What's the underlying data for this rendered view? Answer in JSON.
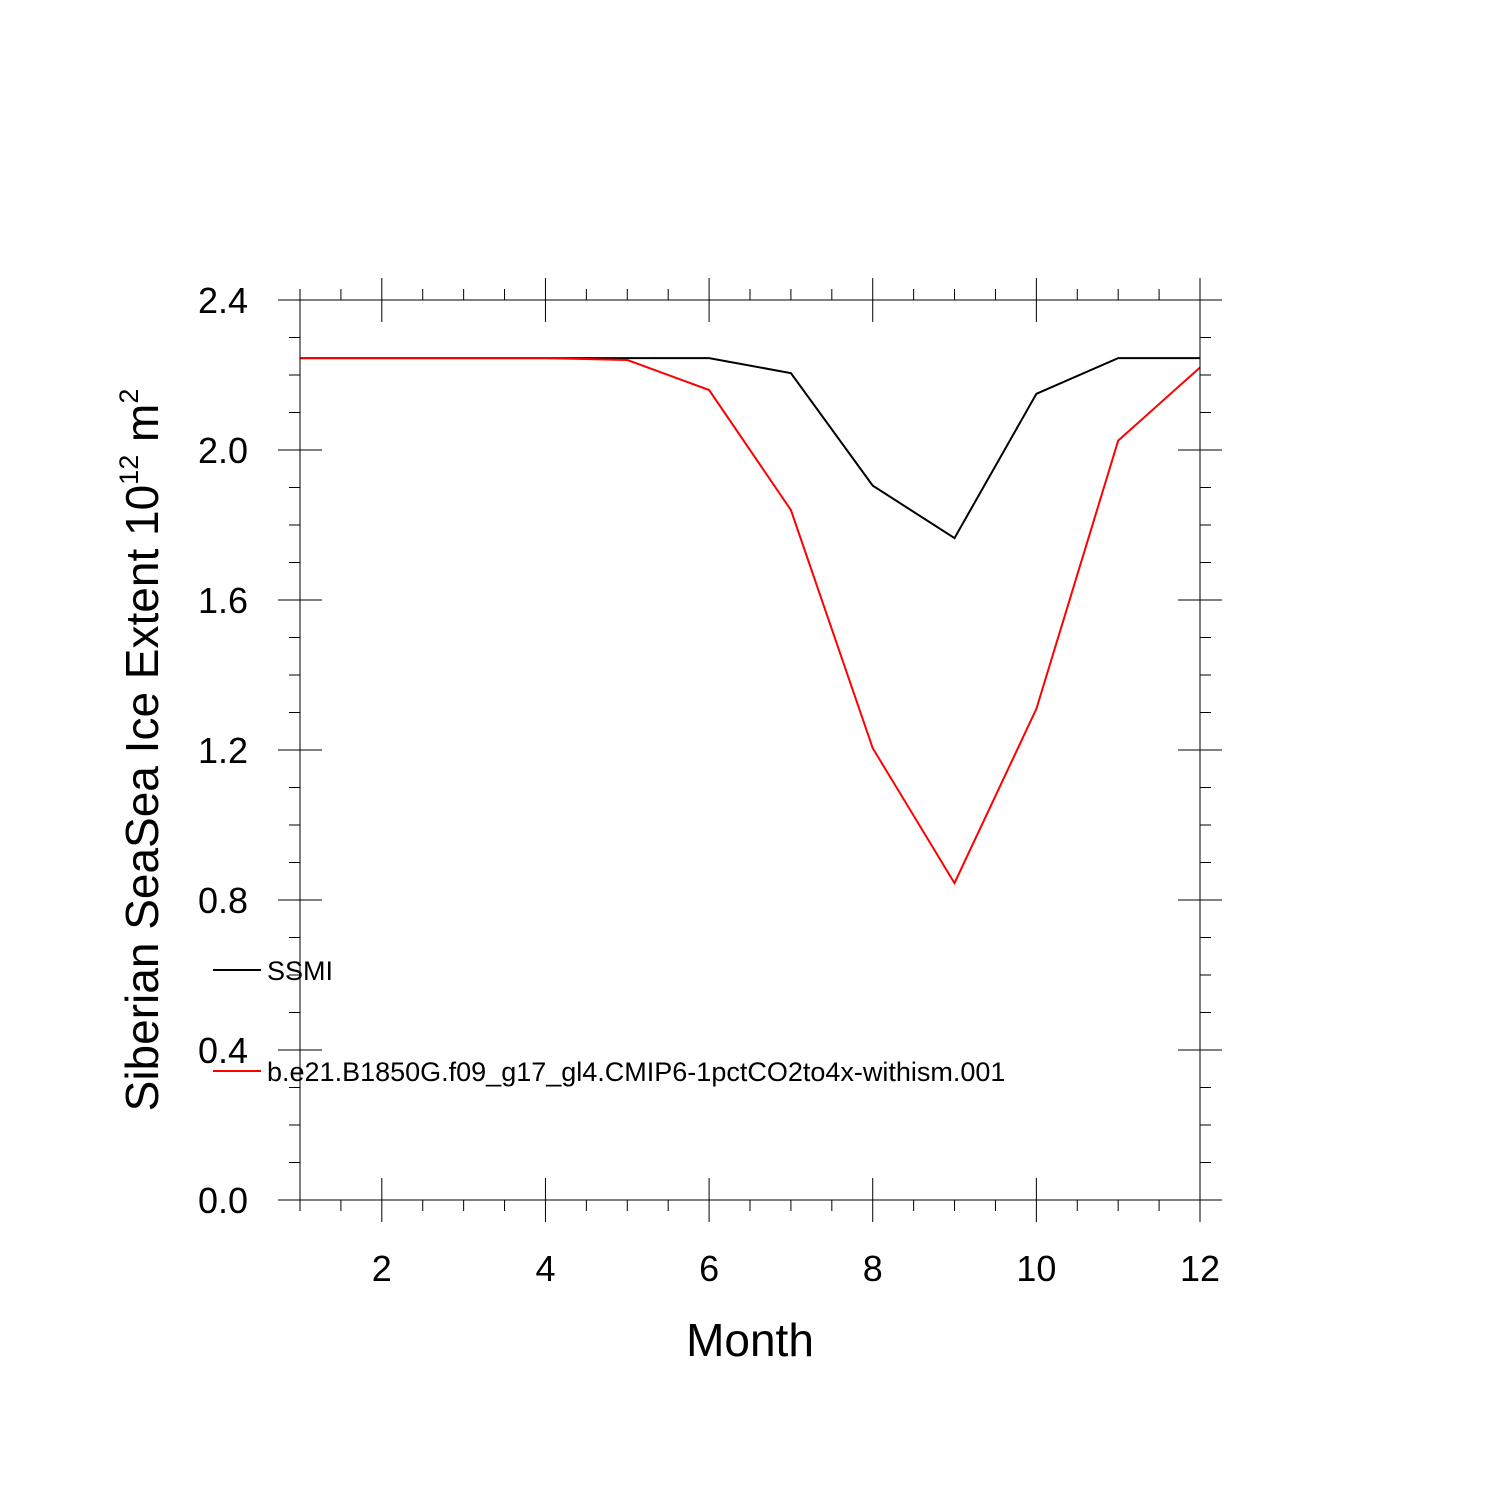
{
  "chart_data": {
    "type": "line",
    "title": "",
    "xlabel": "Month",
    "ylabel": {
      "prefix": "Siberian SeaSea Ice Extent 10",
      "exponent1": "12",
      "middle": " m",
      "exponent2": "2"
    },
    "xlim": [
      1,
      12
    ],
    "ylim": [
      0.0,
      2.4
    ],
    "x_ticks": [
      2,
      4,
      6,
      8,
      10,
      12
    ],
    "x_tick_labels": [
      "2",
      "4",
      "6",
      "8",
      "10",
      "12"
    ],
    "y_ticks": [
      0.0,
      0.4,
      0.8,
      1.2,
      1.6,
      2.0,
      2.4
    ],
    "y_tick_labels": [
      "0.0",
      "0.4",
      "0.8",
      "1.2",
      "1.6",
      "2.0",
      "2.4"
    ],
    "grid": false,
    "legend_placement": "left",
    "x": [
      1,
      2,
      3,
      4,
      5,
      6,
      7,
      8,
      9,
      10,
      11,
      12
    ],
    "series": [
      {
        "name": "SSMI",
        "color": "#000000",
        "values": [
          2.245,
          2.245,
          2.245,
          2.245,
          2.245,
          2.245,
          2.205,
          1.905,
          1.765,
          2.15,
          2.245,
          2.245
        ]
      },
      {
        "name": "b.e21.B1850G.f09_g17_gl4.CMIP6-1pctCO2to4x-withism.001",
        "color": "#ff0000",
        "values": [
          2.245,
          2.245,
          2.245,
          2.245,
          2.24,
          2.16,
          1.84,
          1.205,
          0.845,
          1.31,
          2.025,
          2.22
        ]
      }
    ]
  }
}
